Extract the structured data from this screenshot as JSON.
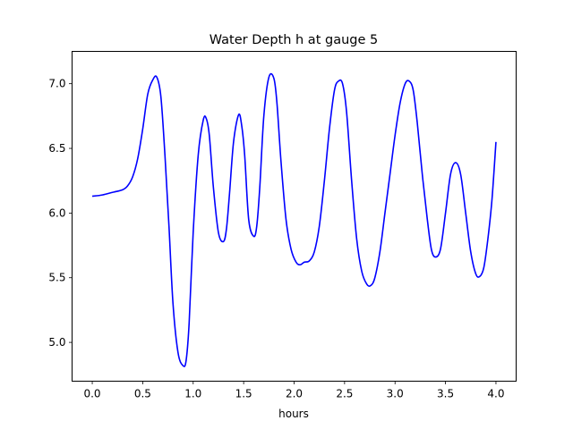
{
  "chart_data": {
    "type": "line",
    "title": "Water Depth h at gauge 5",
    "xlabel": "hours",
    "ylabel": "",
    "xlim": [
      -0.2,
      4.2
    ],
    "ylim": [
      4.7,
      7.25
    ],
    "grid": false,
    "legend": "none",
    "xticks": [
      {
        "value": 0.0,
        "label": "0.0"
      },
      {
        "value": 0.5,
        "label": "0.5"
      },
      {
        "value": 1.0,
        "label": "1.0"
      },
      {
        "value": 1.5,
        "label": "1.5"
      },
      {
        "value": 2.0,
        "label": "2.0"
      },
      {
        "value": 2.5,
        "label": "2.5"
      },
      {
        "value": 3.0,
        "label": "3.0"
      },
      {
        "value": 3.5,
        "label": "3.5"
      },
      {
        "value": 4.0,
        "label": "4.0"
      }
    ],
    "yticks": [
      {
        "value": 5.0,
        "label": "5.0"
      },
      {
        "value": 5.5,
        "label": "5.5"
      },
      {
        "value": 6.0,
        "label": "6.0"
      },
      {
        "value": 6.5,
        "label": "6.5"
      },
      {
        "value": 7.0,
        "label": "7.0"
      }
    ],
    "series": [
      {
        "color": "#0000ff",
        "x": [
          0.0,
          0.1,
          0.2,
          0.3,
          0.35,
          0.4,
          0.45,
          0.5,
          0.55,
          0.6,
          0.64,
          0.68,
          0.72,
          0.76,
          0.8,
          0.85,
          0.9,
          0.93,
          0.96,
          1.0,
          1.05,
          1.1,
          1.13,
          1.16,
          1.2,
          1.25,
          1.3,
          1.33,
          1.36,
          1.4,
          1.45,
          1.48,
          1.51,
          1.55,
          1.6,
          1.63,
          1.66,
          1.7,
          1.75,
          1.8,
          1.83,
          1.87,
          1.92,
          1.97,
          2.02,
          2.06,
          2.1,
          2.15,
          2.2,
          2.25,
          2.3,
          2.35,
          2.4,
          2.44,
          2.48,
          2.52,
          2.57,
          2.62,
          2.67,
          2.72,
          2.76,
          2.8,
          2.85,
          2.9,
          2.95,
          3.0,
          3.05,
          3.1,
          3.14,
          3.18,
          3.22,
          3.27,
          3.32,
          3.36,
          3.4,
          3.45,
          3.5,
          3.55,
          3.6,
          3.65,
          3.7,
          3.75,
          3.8,
          3.84,
          3.88,
          3.92,
          3.96,
          4.0
        ],
        "y": [
          6.13,
          6.14,
          6.16,
          6.18,
          6.21,
          6.28,
          6.42,
          6.65,
          6.92,
          7.03,
          7.05,
          6.9,
          6.45,
          5.9,
          5.3,
          4.92,
          4.82,
          4.86,
          5.15,
          5.85,
          6.45,
          6.72,
          6.73,
          6.6,
          6.2,
          5.85,
          5.78,
          5.88,
          6.15,
          6.55,
          6.76,
          6.68,
          6.45,
          5.95,
          5.82,
          5.9,
          6.2,
          6.75,
          7.05,
          7.04,
          6.85,
          6.4,
          5.95,
          5.72,
          5.62,
          5.6,
          5.62,
          5.63,
          5.7,
          5.9,
          6.25,
          6.65,
          6.95,
          7.02,
          7.0,
          6.78,
          6.25,
          5.8,
          5.55,
          5.45,
          5.44,
          5.5,
          5.7,
          6.0,
          6.3,
          6.6,
          6.85,
          7.0,
          7.02,
          6.95,
          6.7,
          6.3,
          5.95,
          5.72,
          5.66,
          5.72,
          6.0,
          6.3,
          6.39,
          6.3,
          6.0,
          5.7,
          5.53,
          5.51,
          5.58,
          5.8,
          6.1,
          6.55
        ]
      }
    ]
  }
}
